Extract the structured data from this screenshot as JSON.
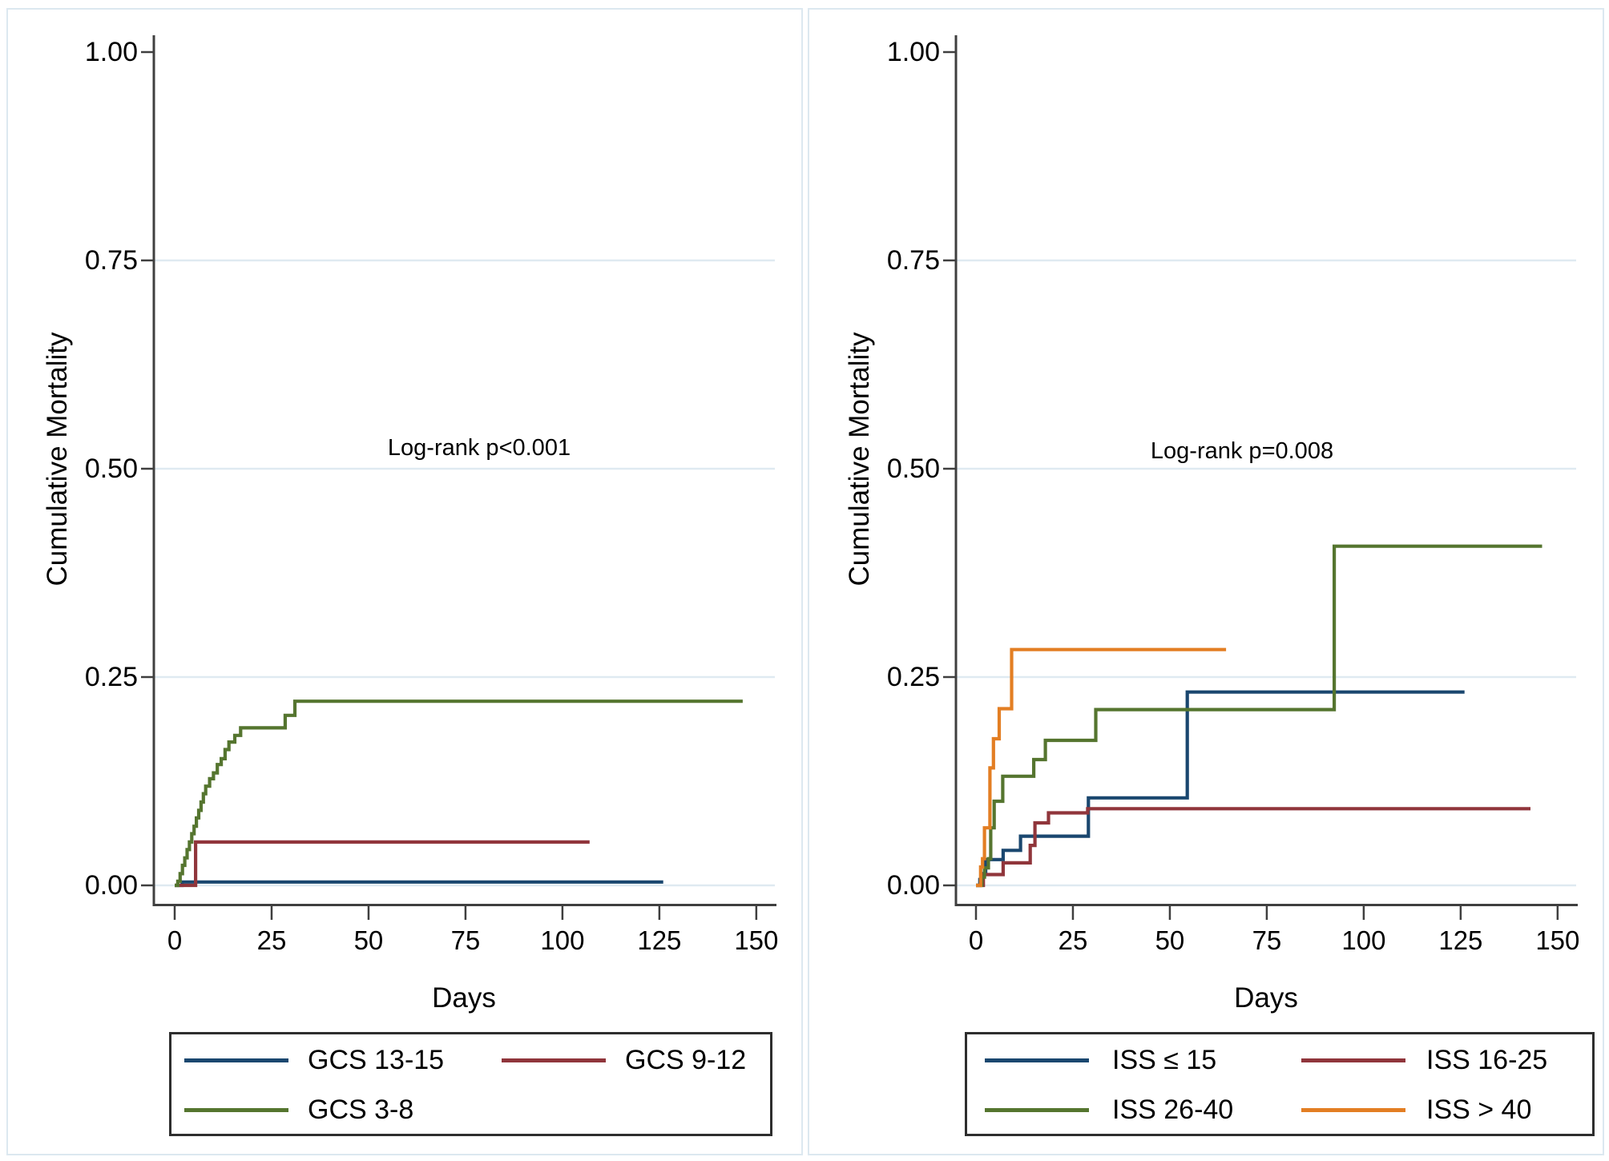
{
  "colors": {
    "navy": "#1a476f",
    "maroon": "#90353b",
    "forest": "#55752f",
    "orange": "#e37e23",
    "grid": "#dfeaf1",
    "axis": "#3f3f3f",
    "text": "#000000",
    "panel_border": "#dce8f0",
    "legend_border": "#2e2e2e",
    "background": "#ffffff"
  },
  "chart_data": [
    {
      "type": "line",
      "subtype": "step-survival",
      "ylabel": "Cumulative Mortality",
      "xlabel": "Days",
      "annotation": "Log-rank p<0.001",
      "grid": "on",
      "xlim": [
        0,
        155
      ],
      "ylim": [
        0,
        1
      ],
      "x_tick_values": [
        0,
        25,
        50,
        75,
        100,
        125,
        150
      ],
      "x_tick_labels": [
        "0",
        "25",
        "50",
        "75",
        "100",
        "125",
        "150"
      ],
      "y_tick_values": [
        0,
        0.25,
        0.5,
        0.75,
        1.0
      ],
      "y_tick_labels": [
        "0.00",
        "0.25",
        "0.50",
        "0.75",
        "1.00"
      ],
      "gridline_values": [
        0,
        0.25,
        0.5,
        0.75
      ],
      "legend_position": "below",
      "series": [
        {
          "name": "GCS 13-15",
          "color": "navy",
          "points": [
            [
              0,
              0
            ],
            [
              1.9,
              0.004
            ],
            [
              126,
              0.004
            ]
          ]
        },
        {
          "name": "GCS 9-12",
          "color": "maroon",
          "points": [
            [
              0,
              0
            ],
            [
              5.4,
              0.052
            ],
            [
              107,
              0.052
            ]
          ]
        },
        {
          "name": "GCS 3-8",
          "color": "forest",
          "points": [
            [
              0,
              0
            ],
            [
              0.8,
              0.005
            ],
            [
              1.4,
              0.014
            ],
            [
              2,
              0.024
            ],
            [
              2.6,
              0.033
            ],
            [
              3.2,
              0.043
            ],
            [
              3.8,
              0.052
            ],
            [
              4.4,
              0.062
            ],
            [
              5,
              0.071
            ],
            [
              5.6,
              0.081
            ],
            [
              6.2,
              0.09
            ],
            [
              6.8,
              0.1
            ],
            [
              7.4,
              0.11
            ],
            [
              8,
              0.119
            ],
            [
              9,
              0.128
            ],
            [
              10,
              0.135
            ],
            [
              11,
              0.145
            ],
            [
              12,
              0.152
            ],
            [
              13,
              0.163
            ],
            [
              14,
              0.172
            ],
            [
              15.5,
              0.18
            ],
            [
              17,
              0.189
            ],
            [
              28.5,
              0.204
            ],
            [
              31,
              0.221
            ],
            [
              146.5,
              0.221
            ]
          ]
        }
      ]
    },
    {
      "type": "line",
      "subtype": "step-survival",
      "ylabel": "Cumulative Mortality",
      "xlabel": "Days",
      "annotation": "Log-rank p=0.008",
      "grid": "on",
      "xlim": [
        0,
        155
      ],
      "ylim": [
        0,
        1
      ],
      "x_tick_values": [
        0,
        25,
        50,
        75,
        100,
        125,
        150
      ],
      "x_tick_labels": [
        "0",
        "25",
        "50",
        "75",
        "100",
        "125",
        "150"
      ],
      "y_tick_values": [
        0,
        0.25,
        0.5,
        0.75,
        1.0
      ],
      "y_tick_labels": [
        "0.00",
        "0.25",
        "0.50",
        "0.75",
        "1.00"
      ],
      "gridline_values": [
        0,
        0.25,
        0.5,
        0.75
      ],
      "legend_position": "below",
      "series": [
        {
          "name": "ISS ≤ 15",
          "color": "navy",
          "points": [
            [
              0,
              0
            ],
            [
              1,
              0.007
            ],
            [
              1.8,
              0.014
            ],
            [
              2.5,
              0.031
            ],
            [
              7,
              0.042
            ],
            [
              11.5,
              0.059
            ],
            [
              29,
              0.105
            ],
            [
              54.5,
              0.232
            ],
            [
              126,
              0.232
            ]
          ]
        },
        {
          "name": "ISS 16-25",
          "color": "maroon",
          "points": [
            [
              0,
              0
            ],
            [
              1.9,
              0.013
            ],
            [
              7,
              0.027
            ],
            [
              14,
              0.048
            ],
            [
              15.2,
              0.075
            ],
            [
              18.7,
              0.087
            ],
            [
              28.8,
              0.092
            ],
            [
              143,
              0.092
            ]
          ]
        },
        {
          "name": "ISS 26-40",
          "color": "forest",
          "points": [
            [
              0,
              0
            ],
            [
              1.5,
              0.01
            ],
            [
              2.2,
              0.021
            ],
            [
              3.2,
              0.032
            ],
            [
              3.8,
              0.069
            ],
            [
              4.7,
              0.101
            ],
            [
              6.9,
              0.131
            ],
            [
              14.9,
              0.151
            ],
            [
              17.9,
              0.174
            ],
            [
              30.9,
              0.211
            ],
            [
              92.4,
              0.407
            ],
            [
              146,
              0.407
            ]
          ]
        },
        {
          "name": "ISS > 40",
          "color": "orange",
          "points": [
            [
              0,
              0
            ],
            [
              1.2,
              0.022
            ],
            [
              1.7,
              0.032
            ],
            [
              2.2,
              0.069
            ],
            [
              3.6,
              0.141
            ],
            [
              4.5,
              0.176
            ],
            [
              6,
              0.212
            ],
            [
              9.2,
              0.283
            ],
            [
              64.5,
              0.283
            ]
          ]
        }
      ]
    }
  ]
}
